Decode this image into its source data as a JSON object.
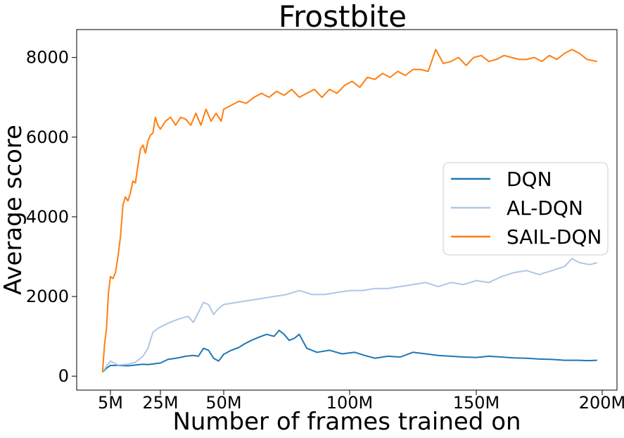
{
  "chart_data": {
    "type": "line",
    "title": "Frostbite",
    "xlabel": "Number of frames trained on",
    "ylabel": "Average score",
    "xlim": [
      0,
      200
    ],
    "ylim": [
      -350,
      8700
    ],
    "x_ticks": [
      {
        "value": 5,
        "label": "5M"
      },
      {
        "value": 25,
        "label": "25M"
      },
      {
        "value": 50,
        "label": "50M"
      },
      {
        "value": 100,
        "label": "100M"
      },
      {
        "value": 150,
        "label": "150M"
      },
      {
        "value": 200,
        "label": "200M"
      }
    ],
    "y_ticks": [
      {
        "value": 0,
        "label": "0"
      },
      {
        "value": 2000,
        "label": "2000"
      },
      {
        "value": 4000,
        "label": "4000"
      },
      {
        "value": 6000,
        "label": "6000"
      },
      {
        "value": 8000,
        "label": "8000"
      }
    ],
    "x_axis_scale": "piecewise-linear (5M–50M spans are stretched relative to 50M–200M)",
    "grid": false,
    "legend_position": "right",
    "series": [
      {
        "name": "DQN",
        "color": "#1f77b4",
        "points": [
          [
            1,
            100
          ],
          [
            3,
            200
          ],
          [
            5,
            270
          ],
          [
            8,
            270
          ],
          [
            12,
            260
          ],
          [
            15,
            280
          ],
          [
            18,
            300
          ],
          [
            20,
            290
          ],
          [
            25,
            330
          ],
          [
            28,
            420
          ],
          [
            32,
            460
          ],
          [
            35,
            500
          ],
          [
            38,
            520
          ],
          [
            40,
            500
          ],
          [
            42,
            700
          ],
          [
            44,
            650
          ],
          [
            46,
            450
          ],
          [
            48,
            380
          ],
          [
            50,
            550
          ],
          [
            53,
            650
          ],
          [
            56,
            720
          ],
          [
            58,
            800
          ],
          [
            61,
            900
          ],
          [
            64,
            980
          ],
          [
            67,
            1050
          ],
          [
            70,
            1000
          ],
          [
            72,
            1150
          ],
          [
            74,
            1050
          ],
          [
            76,
            900
          ],
          [
            78,
            950
          ],
          [
            80,
            1050
          ],
          [
            83,
            700
          ],
          [
            87,
            600
          ],
          [
            92,
            650
          ],
          [
            97,
            560
          ],
          [
            102,
            600
          ],
          [
            106,
            520
          ],
          [
            110,
            450
          ],
          [
            115,
            500
          ],
          [
            120,
            480
          ],
          [
            125,
            600
          ],
          [
            130,
            560
          ],
          [
            135,
            520
          ],
          [
            140,
            500
          ],
          [
            145,
            480
          ],
          [
            150,
            470
          ],
          [
            155,
            500
          ],
          [
            160,
            480
          ],
          [
            165,
            460
          ],
          [
            170,
            450
          ],
          [
            175,
            430
          ],
          [
            180,
            420
          ],
          [
            185,
            400
          ],
          [
            190,
            400
          ],
          [
            195,
            390
          ],
          [
            198,
            400
          ]
        ]
      },
      {
        "name": "AL-DQN",
        "color": "#aec7e8",
        "points": [
          [
            1,
            100
          ],
          [
            3,
            250
          ],
          [
            5,
            380
          ],
          [
            8,
            280
          ],
          [
            12,
            300
          ],
          [
            15,
            350
          ],
          [
            18,
            500
          ],
          [
            20,
            700
          ],
          [
            22,
            1100
          ],
          [
            24,
            1200
          ],
          [
            27,
            1300
          ],
          [
            30,
            1380
          ],
          [
            33,
            1450
          ],
          [
            36,
            1500
          ],
          [
            38,
            1350
          ],
          [
            40,
            1600
          ],
          [
            42,
            1850
          ],
          [
            44,
            1800
          ],
          [
            46,
            1550
          ],
          [
            48,
            1700
          ],
          [
            50,
            1800
          ],
          [
            55,
            1850
          ],
          [
            60,
            1900
          ],
          [
            65,
            1950
          ],
          [
            70,
            2000
          ],
          [
            75,
            2050
          ],
          [
            80,
            2150
          ],
          [
            85,
            2050
          ],
          [
            90,
            2050
          ],
          [
            95,
            2100
          ],
          [
            100,
            2150
          ],
          [
            105,
            2150
          ],
          [
            110,
            2200
          ],
          [
            115,
            2200
          ],
          [
            120,
            2250
          ],
          [
            125,
            2300
          ],
          [
            130,
            2350
          ],
          [
            135,
            2250
          ],
          [
            140,
            2350
          ],
          [
            145,
            2300
          ],
          [
            150,
            2400
          ],
          [
            155,
            2350
          ],
          [
            160,
            2500
          ],
          [
            165,
            2600
          ],
          [
            170,
            2650
          ],
          [
            175,
            2550
          ],
          [
            180,
            2650
          ],
          [
            185,
            2750
          ],
          [
            188,
            2950
          ],
          [
            191,
            2850
          ],
          [
            195,
            2800
          ],
          [
            198,
            2850
          ]
        ]
      },
      {
        "name": "SAIL-DQN",
        "color": "#ff7f0e",
        "points": [
          [
            1,
            100
          ],
          [
            2,
            800
          ],
          [
            3,
            1200
          ],
          [
            4,
            2100
          ],
          [
            5,
            2500
          ],
          [
            6,
            2450
          ],
          [
            7,
            2600
          ],
          [
            8,
            3000
          ],
          [
            9,
            3500
          ],
          [
            10,
            4300
          ],
          [
            11,
            4500
          ],
          [
            12,
            4400
          ],
          [
            13,
            4600
          ],
          [
            14,
            4900
          ],
          [
            15,
            4850
          ],
          [
            16,
            5300
          ],
          [
            17,
            5700
          ],
          [
            18,
            5800
          ],
          [
            19,
            5600
          ],
          [
            20,
            5900
          ],
          [
            21,
            6050
          ],
          [
            22,
            6100
          ],
          [
            23,
            6500
          ],
          [
            24,
            6300
          ],
          [
            25,
            6200
          ],
          [
            27,
            6400
          ],
          [
            29,
            6500
          ],
          [
            31,
            6300
          ],
          [
            33,
            6500
          ],
          [
            35,
            6450
          ],
          [
            37,
            6300
          ],
          [
            39,
            6600
          ],
          [
            41,
            6300
          ],
          [
            43,
            6700
          ],
          [
            45,
            6400
          ],
          [
            47,
            6600
          ],
          [
            49,
            6400
          ],
          [
            50,
            6700
          ],
          [
            53,
            6800
          ],
          [
            56,
            6900
          ],
          [
            59,
            6850
          ],
          [
            62,
            7000
          ],
          [
            65,
            7100
          ],
          [
            68,
            7000
          ],
          [
            71,
            7150
          ],
          [
            74,
            7050
          ],
          [
            77,
            7200
          ],
          [
            80,
            7000
          ],
          [
            83,
            7100
          ],
          [
            86,
            7200
          ],
          [
            89,
            7000
          ],
          [
            92,
            7200
          ],
          [
            95,
            7100
          ],
          [
            98,
            7300
          ],
          [
            101,
            7400
          ],
          [
            104,
            7250
          ],
          [
            107,
            7500
          ],
          [
            110,
            7450
          ],
          [
            113,
            7600
          ],
          [
            116,
            7500
          ],
          [
            119,
            7650
          ],
          [
            122,
            7550
          ],
          [
            125,
            7700
          ],
          [
            128,
            7700
          ],
          [
            131,
            7650
          ],
          [
            134,
            8200
          ],
          [
            137,
            7850
          ],
          [
            140,
            7900
          ],
          [
            143,
            8000
          ],
          [
            146,
            7800
          ],
          [
            149,
            8000
          ],
          [
            152,
            8050
          ],
          [
            155,
            7900
          ],
          [
            158,
            7950
          ],
          [
            161,
            8050
          ],
          [
            164,
            8000
          ],
          [
            167,
            7950
          ],
          [
            170,
            7950
          ],
          [
            173,
            8000
          ],
          [
            176,
            7900
          ],
          [
            179,
            8050
          ],
          [
            182,
            7950
          ],
          [
            185,
            8100
          ],
          [
            188,
            8200
          ],
          [
            191,
            8100
          ],
          [
            194,
            7950
          ],
          [
            198,
            7900
          ]
        ]
      }
    ]
  }
}
